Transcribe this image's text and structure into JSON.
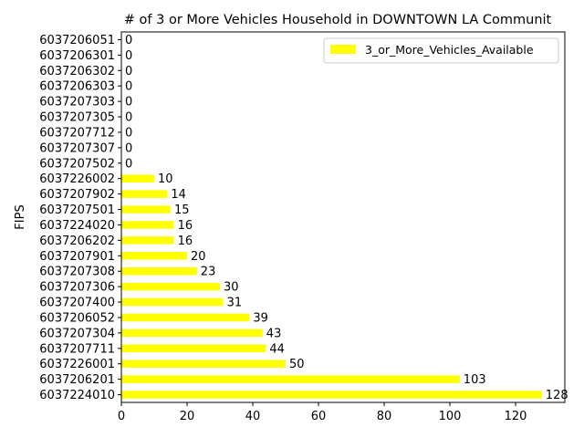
{
  "chart_data": {
    "type": "bar",
    "orientation": "horizontal",
    "title": "# of 3 or More Vehicles Household in DOWNTOWN LA Communit",
    "xlabel": "",
    "ylabel": "FIPS",
    "xlim": [
      0,
      135
    ],
    "xticks": [
      0,
      20,
      40,
      60,
      80,
      100,
      120
    ],
    "grid": false,
    "legend_position": "top-right",
    "bar_color": "#ffff00",
    "categories": [
      "6037224010",
      "6037206201",
      "6037226001",
      "6037207711",
      "6037207304",
      "6037206052",
      "6037207400",
      "6037207306",
      "6037207308",
      "6037207901",
      "6037206202",
      "6037224020",
      "6037207501",
      "6037207902",
      "6037226002",
      "6037207502",
      "6037207307",
      "6037207712",
      "6037207305",
      "6037207303",
      "6037206303",
      "6037206302",
      "6037206301",
      "6037206051"
    ],
    "series": [
      {
        "name": "3_or_More_Vehicles_Available",
        "values": [
          128,
          103,
          50,
          44,
          43,
          39,
          31,
          30,
          23,
          20,
          16,
          16,
          15,
          14,
          10,
          0,
          0,
          0,
          0,
          0,
          0,
          0,
          0,
          0
        ]
      }
    ]
  }
}
